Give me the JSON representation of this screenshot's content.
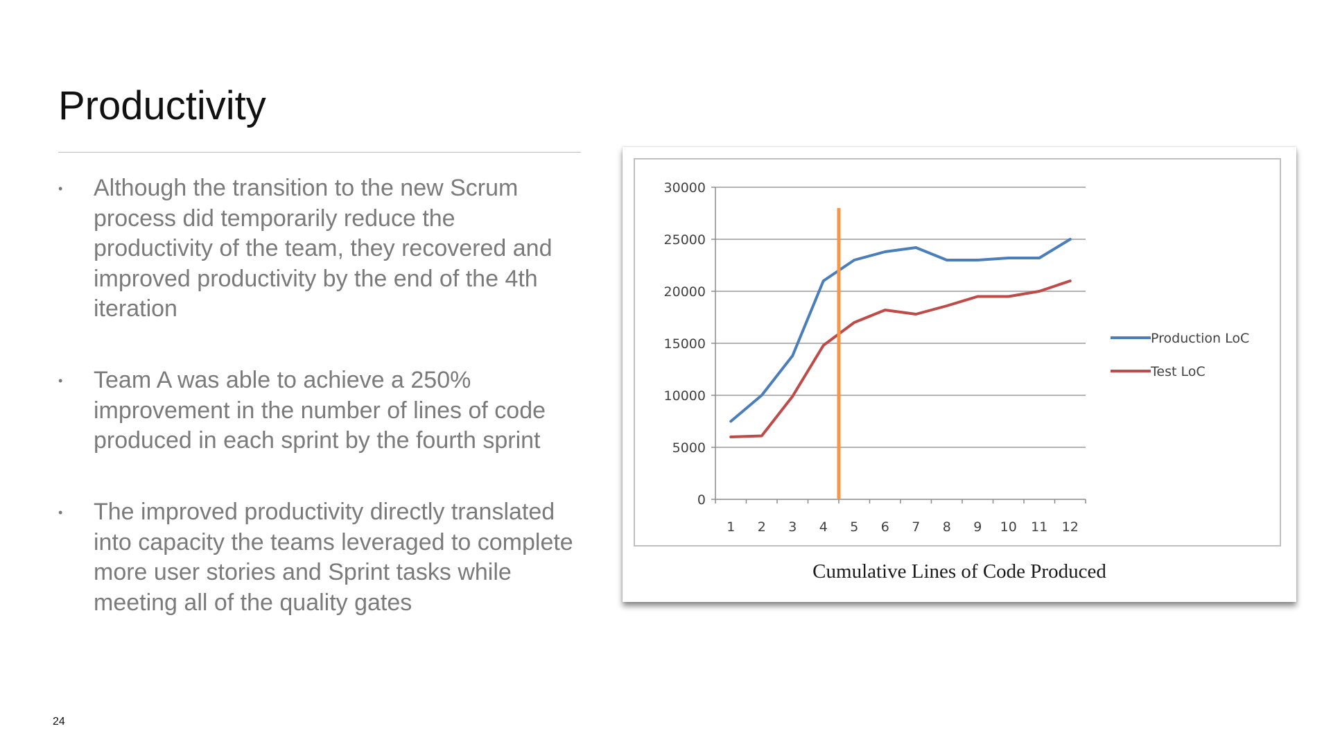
{
  "slide": {
    "title": "Productivity",
    "page_number": "24",
    "bullets": [
      "Although the transition to the new Scrum process did temporarily reduce the productivity of the team, they recovered and improved productivity by the end of the 4th iteration",
      "Team A was able to achieve a 250% improvement in the number of lines of code produced in each sprint by the fourth sprint",
      "The improved productivity directly translated into capacity the teams leveraged to complete more user stories and Sprint tasks while meeting all of the quality gates"
    ],
    "bullet_symbol": "•"
  },
  "figure": {
    "caption": "Cumulative Lines of Code Produced"
  },
  "chart_data": {
    "type": "line",
    "title": "",
    "xlabel": "",
    "ylabel": "",
    "x": [
      1,
      2,
      3,
      4,
      5,
      6,
      7,
      8,
      9,
      10,
      11,
      12
    ],
    "x_tick_labels": [
      "1",
      "2",
      "3",
      "4",
      "5",
      "6",
      "7",
      "8",
      "9",
      "10",
      "11",
      "12"
    ],
    "ylim": [
      0,
      30000
    ],
    "y_ticks": [
      0,
      5000,
      10000,
      15000,
      20000,
      25000,
      30000
    ],
    "y_tick_labels": [
      "0",
      "5000",
      "10000",
      "15000",
      "20000",
      "25000",
      "30000"
    ],
    "grid": true,
    "legend_position": "right",
    "series": [
      {
        "name": "Production LoC",
        "color": "#4a7ebb",
        "values": [
          7500,
          10000,
          13800,
          21000,
          23000,
          23800,
          24200,
          23000,
          23000,
          23200,
          23200,
          25000
        ]
      },
      {
        "name": "Test LoC",
        "color": "#be4b48",
        "values": [
          6000,
          6100,
          9900,
          14800,
          17000,
          18200,
          17800,
          18600,
          19500,
          19500,
          20000,
          21000
        ]
      }
    ],
    "annotations": [
      {
        "type": "vertical-line",
        "x": 4.5,
        "y_top": 28000,
        "color": "#f79646"
      }
    ]
  }
}
